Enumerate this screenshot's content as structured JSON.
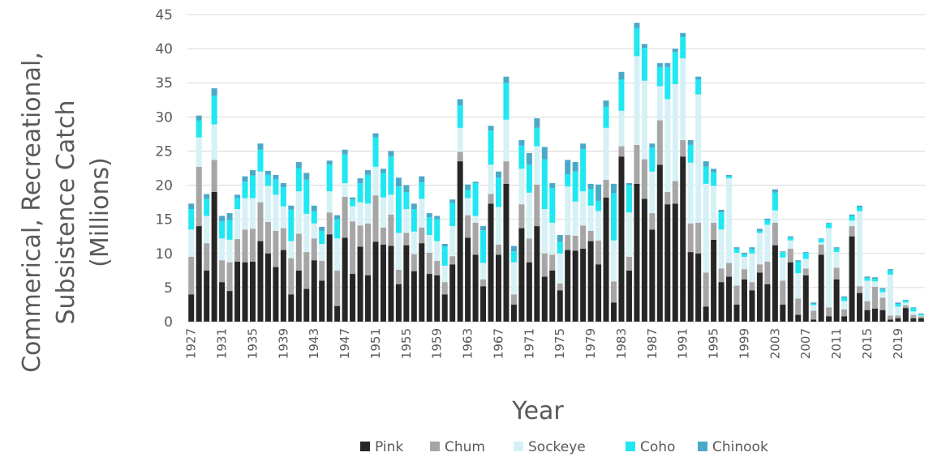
{
  "chart_data": {
    "type": "bar",
    "stacked": true,
    "title": "",
    "xlabel": "Year",
    "ylabel_lines": [
      "Commerical, Recreational,",
      "Subsistence Catch",
      "(Millions)"
    ],
    "ylim": [
      0,
      45
    ],
    "yticks": [
      "0",
      "5",
      "10",
      "15",
      "20",
      "25",
      "30",
      "35",
      "40",
      "45"
    ],
    "grid": true,
    "legend_position": "bottom",
    "x": [
      1927,
      1928,
      1929,
      1930,
      1931,
      1932,
      1933,
      1934,
      1935,
      1936,
      1937,
      1938,
      1939,
      1940,
      1941,
      1942,
      1943,
      1944,
      1945,
      1946,
      1947,
      1948,
      1949,
      1950,
      1951,
      1952,
      1953,
      1954,
      1955,
      1956,
      1957,
      1958,
      1959,
      1960,
      1961,
      1962,
      1963,
      1964,
      1965,
      1966,
      1967,
      1968,
      1969,
      1970,
      1971,
      1972,
      1973,
      1974,
      1975,
      1976,
      1977,
      1978,
      1979,
      1980,
      1981,
      1982,
      1983,
      1984,
      1985,
      1986,
      1987,
      1988,
      1989,
      1990,
      1991,
      1992,
      1993,
      1994,
      1995,
      1996,
      1997,
      1998,
      1999,
      2000,
      2001,
      2002,
      2003,
      2004,
      2005,
      2006,
      2007,
      2008,
      2009,
      2010,
      2011,
      2012,
      2013,
      2014,
      2015,
      2016,
      2017,
      2018,
      2019,
      2020,
      2021,
      2022
    ],
    "xtick_labels": [
      "1927",
      "1931",
      "1935",
      "1939",
      "1943",
      "1947",
      "1951",
      "1955",
      "1959",
      "1963",
      "1967",
      "1971",
      "1975",
      "1979",
      "1983",
      "1987",
      "1991",
      "1995",
      "1999",
      "2003",
      "2007",
      "2011",
      "2015",
      "2019"
    ],
    "series": [
      {
        "name": "Pink",
        "color": "#262626",
        "values": [
          4,
          14,
          7.5,
          19,
          5.8,
          4.5,
          8.8,
          8.7,
          8.8,
          11.8,
          10,
          8,
          10.5,
          4,
          7.5,
          4.8,
          9,
          6,
          12.8,
          2.3,
          12.3,
          7,
          11,
          6.8,
          11.7,
          11.3,
          11.1,
          5.5,
          11.2,
          7.4,
          11.5,
          7,
          6.8,
          4,
          8.4,
          23.5,
          12.3,
          9.8,
          5.2,
          17.3,
          9.8,
          20.2,
          2.5,
          13.7,
          8.7,
          14,
          6.6,
          7.5,
          4.6,
          10.5,
          10.4,
          10.7,
          11.8,
          8.4,
          18.2,
          2.8,
          24.2,
          7.5,
          20.2,
          18,
          13.5,
          23,
          17.2,
          17.3,
          24.2,
          10.2,
          10,
          2.2,
          12,
          5.8,
          6.6,
          2.5,
          6.2,
          4.6,
          7.2,
          5.5,
          11.2,
          2.5,
          8.7,
          1,
          6.8,
          0.3,
          9.8,
          0.8,
          6.2,
          0.8,
          12.5,
          4.2,
          1.7,
          1.9,
          1.7,
          0.3,
          0.5,
          2,
          0.5,
          0.5
        ]
      },
      {
        "name": "Chum",
        "color": "#a6a6a6",
        "values": [
          5.5,
          8.7,
          4,
          4.7,
          3.2,
          4.2,
          3.3,
          4.8,
          4.8,
          5.7,
          4.6,
          5.3,
          3.2,
          5.3,
          5.4,
          5.4,
          3.2,
          2.9,
          3.2,
          5.2,
          6,
          7.7,
          3.1,
          7.6,
          6.8,
          2.5,
          4.6,
          2.1,
          1.8,
          2.5,
          2.3,
          3.1,
          2.1,
          1.8,
          1.2,
          1.4,
          3.3,
          4.7,
          1,
          1.4,
          1.5,
          3.3,
          1.5,
          3.5,
          3.5,
          6.1,
          3.4,
          2.3,
          1,
          2.2,
          2.2,
          3.4,
          1.5,
          3.5,
          2.6,
          3.1,
          1.5,
          2,
          5.7,
          5.8,
          2.4,
          6.5,
          1.8,
          3.3,
          2.4,
          4.2,
          4.5,
          5,
          2.5,
          2,
          2,
          2.8,
          1.5,
          1.2,
          1.2,
          3.3,
          3.3,
          3.5,
          2,
          2.4,
          1,
          1.3,
          1.5,
          1.3,
          1.7,
          1,
          1.5,
          1,
          1.3,
          3.2,
          1.8,
          0.6,
          0.4,
          0.4,
          0.5,
          0.3
        ]
      },
      {
        "name": "Sockeye",
        "color": "#d6f1f6",
        "values": [
          4,
          4.3,
          4,
          5.2,
          3.2,
          3.3,
          4.4,
          4.6,
          4.5,
          4.5,
          5.3,
          5.3,
          3.2,
          2.5,
          6.2,
          5.6,
          2.2,
          2.5,
          3.1,
          4.7,
          2,
          2.2,
          3.4,
          2.9,
          4.2,
          4.4,
          2.9,
          5.4,
          3.5,
          3.3,
          4.2,
          2.6,
          2.9,
          2.4,
          4.4,
          3.5,
          2.5,
          1,
          2.4,
          4.3,
          5.5,
          6.1,
          4.7,
          5.2,
          6.7,
          5.6,
          6.5,
          4.7,
          4.4,
          7.1,
          5,
          5,
          3.7,
          4.3,
          7.6,
          6,
          5.2,
          6.5,
          13,
          11.5,
          6.1,
          5,
          13.6,
          14.2,
          12,
          8.9,
          18.8,
          13,
          5.4,
          5.7,
          12.4,
          4.8,
          1.8,
          4.2,
          4.6,
          5.4,
          1.8,
          3.4,
          1.2,
          3.7,
          1.4,
          0.8,
          0.3,
          11.6,
          2.3,
          1.2,
          0.8,
          11,
          3,
          0.8,
          0.8,
          6,
          1.3,
          0.4,
          0.5,
          0.1
        ]
      },
      {
        "name": "Coho",
        "color": "#1fe8f2",
        "values": [
          3,
          2.5,
          2.5,
          4.2,
          2.5,
          2.9,
          1.6,
          2.4,
          3.3,
          3.2,
          1.6,
          2.3,
          2.8,
          4.6,
          3.4,
          5,
          1.8,
          1.9,
          3.9,
          2.8,
          4.2,
          1,
          2.8,
          4.2,
          4.3,
          3.6,
          5.6,
          6.8,
          2.5,
          3.3,
          2.4,
          2.6,
          3.2,
          2.8,
          3.4,
          3.3,
          1.2,
          4.8,
          4.8,
          5,
          4.3,
          5.4,
          1.6,
          3.4,
          4.1,
          2.7,
          7.3,
          5.1,
          1.7,
          1.8,
          4.4,
          6.2,
          2.4,
          1.5,
          3.1,
          6.9,
          4.6,
          4,
          4.1,
          4.8,
          3.5,
          2.8,
          4.7,
          4.7,
          3.1,
          2.6,
          2.2,
          2.5,
          2,
          2.5,
          0.3,
          0.6,
          0.4,
          0.6,
          0.3,
          0.7,
          2.6,
          0.8,
          0.4,
          1.7,
          0.9,
          0.2,
          0.5,
          0.7,
          0.5,
          0.5,
          0.7,
          0.6,
          0.4,
          0.4,
          0.4,
          0.6,
          0.4,
          0.3,
          0.5,
          0.2
        ]
      },
      {
        "name": "Chinook",
        "color": "#4ba9c8",
        "values": [
          0.8,
          0.7,
          0.7,
          1.1,
          0.8,
          1,
          0.5,
          0.8,
          0.8,
          0.9,
          0.6,
          0.6,
          0.6,
          0.6,
          0.9,
          1,
          0.8,
          0.6,
          0.6,
          0.6,
          0.7,
          0.3,
          0.7,
          0.7,
          0.6,
          0.6,
          0.8,
          1.3,
          1,
          0.8,
          0.9,
          0.6,
          0.5,
          0.4,
          0.5,
          0.9,
          0.8,
          0.2,
          0.6,
          0.7,
          0.9,
          0.9,
          0.8,
          0.8,
          1.7,
          1.4,
          1.8,
          0.7,
          1,
          2.1,
          1.4,
          0.8,
          0.8,
          2.4,
          0.9,
          1.4,
          1.1,
          0.3,
          0.8,
          0.6,
          0.6,
          0.6,
          0.6,
          0.5,
          0.6,
          0.7,
          0.4,
          0.8,
          0.5,
          0.4,
          0.2,
          0.2,
          0.2,
          0.3,
          0.3,
          0.2,
          0.5,
          0.1,
          0.2,
          0.2,
          0.1,
          0.2,
          0.1,
          0.1,
          0.2,
          0.2,
          0.2,
          0.2,
          0.2,
          0.2,
          0.2,
          0.2,
          0.2,
          0.1,
          0.1,
          0.1
        ]
      }
    ]
  }
}
